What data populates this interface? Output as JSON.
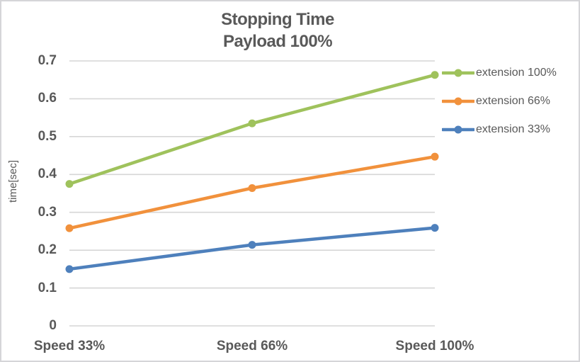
{
  "chart_data": {
    "type": "line",
    "title": "Stopping Time",
    "subtitle": "Payload 100%",
    "ylabel": "time[sec]",
    "xlabel": "",
    "categories": [
      "Speed 33%",
      "Speed 66%",
      "Speed 100%"
    ],
    "series": [
      {
        "name": "extension 100%",
        "color": "#9fc25c",
        "values": [
          0.375,
          0.535,
          0.663
        ]
      },
      {
        "name": "extension 66%",
        "color": "#f1913c",
        "values": [
          0.258,
          0.364,
          0.447
        ]
      },
      {
        "name": "extension 33%",
        "color": "#4e80bc",
        "values": [
          0.15,
          0.214,
          0.259
        ]
      }
    ],
    "ylim": [
      0,
      0.7
    ],
    "ytick_step": 0.1,
    "yticks": [
      "0",
      "0.1",
      "0.2",
      "0.3",
      "0.4",
      "0.5",
      "0.6",
      "0.7"
    ],
    "grid": "horizontal",
    "gridline_color": "#d6d6d6",
    "text_color": "#595959",
    "legend_position": "right"
  }
}
